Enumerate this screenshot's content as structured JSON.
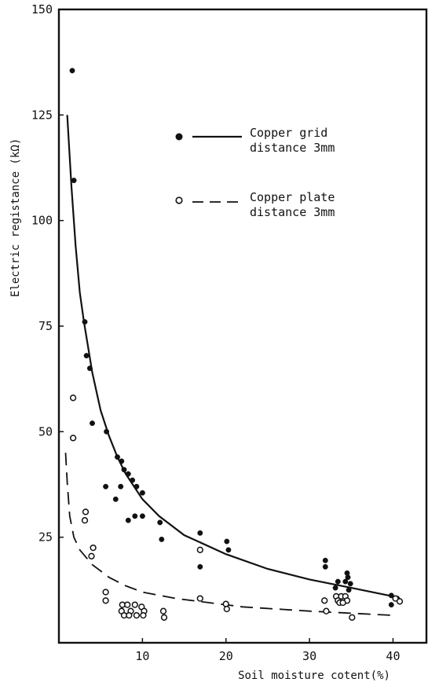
{
  "chart_data": {
    "type": "scatter",
    "title": "",
    "xlabel": "Soil moisture cotent(%)",
    "ylabel": "Electric registance (kΩ)",
    "xlim": [
      0,
      44
    ],
    "ylim": [
      0,
      150
    ],
    "xticks": [
      {
        "v": 10,
        "label": "10"
      },
      {
        "v": 20,
        "label": "20"
      },
      {
        "v": 30,
        "label": "30"
      },
      {
        "v": 40,
        "label": "40"
      }
    ],
    "yticks": [
      {
        "v": 25,
        "label": "25"
      },
      {
        "v": 50,
        "label": "50"
      },
      {
        "v": 75,
        "label": "75"
      },
      {
        "v": 100,
        "label": "100"
      },
      {
        "v": 125,
        "label": "125"
      },
      {
        "v": 150,
        "label": "150"
      }
    ],
    "grid": false,
    "legend_position": "top-right",
    "series": [
      {
        "name_line1": "Copper grid",
        "name_line2": "distance 3mm",
        "marker": "filled-circle",
        "line_style": "solid",
        "color": "#111111",
        "points": [
          [
            1.6,
            135.5
          ],
          [
            1.8,
            109.5
          ],
          [
            3.1,
            76
          ],
          [
            3.3,
            68
          ],
          [
            3.7,
            65
          ],
          [
            4.0,
            52
          ],
          [
            5.7,
            50
          ],
          [
            7.0,
            44
          ],
          [
            7.5,
            43
          ],
          [
            7.8,
            41
          ],
          [
            8.3,
            40
          ],
          [
            8.8,
            38.5
          ],
          [
            9.3,
            37
          ],
          [
            5.6,
            37
          ],
          [
            7.4,
            37
          ],
          [
            10.0,
            35.5
          ],
          [
            6.8,
            34
          ],
          [
            8.3,
            29
          ],
          [
            9.1,
            30
          ],
          [
            10.0,
            30
          ],
          [
            12.1,
            28.5
          ],
          [
            12.3,
            24.5
          ],
          [
            16.9,
            26
          ],
          [
            16.9,
            18
          ],
          [
            20.1,
            24
          ],
          [
            20.3,
            22
          ],
          [
            31.9,
            19.5
          ],
          [
            31.9,
            18
          ],
          [
            34.5,
            16.5
          ],
          [
            34.6,
            15.5
          ],
          [
            33.4,
            14.5
          ],
          [
            34.3,
            14.5
          ],
          [
            34.9,
            14
          ],
          [
            33.1,
            13
          ],
          [
            34.7,
            12.5
          ],
          [
            39.8,
            11.2
          ],
          [
            40.5,
            10.5
          ],
          [
            39.8,
            9.0
          ]
        ],
        "curve": [
          [
            1.0,
            125
          ],
          [
            1.5,
            108
          ],
          [
            2.0,
            94
          ],
          [
            2.5,
            83
          ],
          [
            3.0,
            76
          ],
          [
            4.0,
            64
          ],
          [
            5.0,
            55
          ],
          [
            6.0,
            49
          ],
          [
            7.0,
            44
          ],
          [
            8.0,
            40
          ],
          [
            10.0,
            34
          ],
          [
            12.0,
            30
          ],
          [
            15.0,
            25.5
          ],
          [
            20.0,
            21
          ],
          [
            25.0,
            17.5
          ],
          [
            30.0,
            15
          ],
          [
            35.0,
            13
          ],
          [
            40.0,
            11
          ]
        ]
      },
      {
        "name_line1": "Copper plate",
        "name_line2": "distance 3mm",
        "marker": "open-circle",
        "line_style": "dashed",
        "color": "#111111",
        "points": [
          [
            1.7,
            58
          ],
          [
            1.7,
            48.5
          ],
          [
            3.2,
            31
          ],
          [
            3.1,
            29
          ],
          [
            4.1,
            22.5
          ],
          [
            3.9,
            20.5
          ],
          [
            5.6,
            12
          ],
          [
            5.6,
            10
          ],
          [
            7.6,
            9
          ],
          [
            8.2,
            9
          ],
          [
            9.1,
            9
          ],
          [
            9.9,
            8.5
          ],
          [
            7.5,
            7.5
          ],
          [
            8.6,
            7.5
          ],
          [
            10.2,
            7.5
          ],
          [
            12.5,
            7.5
          ],
          [
            7.8,
            6.5
          ],
          [
            8.4,
            6.5
          ],
          [
            9.3,
            6.5
          ],
          [
            10.1,
            6.5
          ],
          [
            12.6,
            6
          ],
          [
            16.9,
            22
          ],
          [
            16.9,
            10.5
          ],
          [
            20.0,
            9.2
          ],
          [
            20.1,
            8
          ],
          [
            31.8,
            10
          ],
          [
            32.0,
            7.5
          ],
          [
            33.2,
            11
          ],
          [
            33.8,
            11
          ],
          [
            34.3,
            11
          ],
          [
            33.4,
            10
          ],
          [
            34.5,
            10
          ],
          [
            33.6,
            9.5
          ],
          [
            34.0,
            9.5
          ],
          [
            35.1,
            6
          ],
          [
            40.3,
            10.5
          ],
          [
            40.8,
            9.8
          ]
        ],
        "curve": [
          [
            0.8,
            45
          ],
          [
            1.0,
            38
          ],
          [
            1.3,
            30
          ],
          [
            1.8,
            25
          ],
          [
            2.5,
            22
          ],
          [
            4.0,
            18.5
          ],
          [
            6.0,
            15.5
          ],
          [
            8.0,
            13.5
          ],
          [
            10.0,
            12
          ],
          [
            14.0,
            10.5
          ],
          [
            18.0,
            9.5
          ],
          [
            22.0,
            8.5
          ],
          [
            26.0,
            8
          ],
          [
            30.0,
            7.5
          ],
          [
            35.0,
            7
          ],
          [
            40.0,
            6.5
          ]
        ]
      }
    ]
  }
}
